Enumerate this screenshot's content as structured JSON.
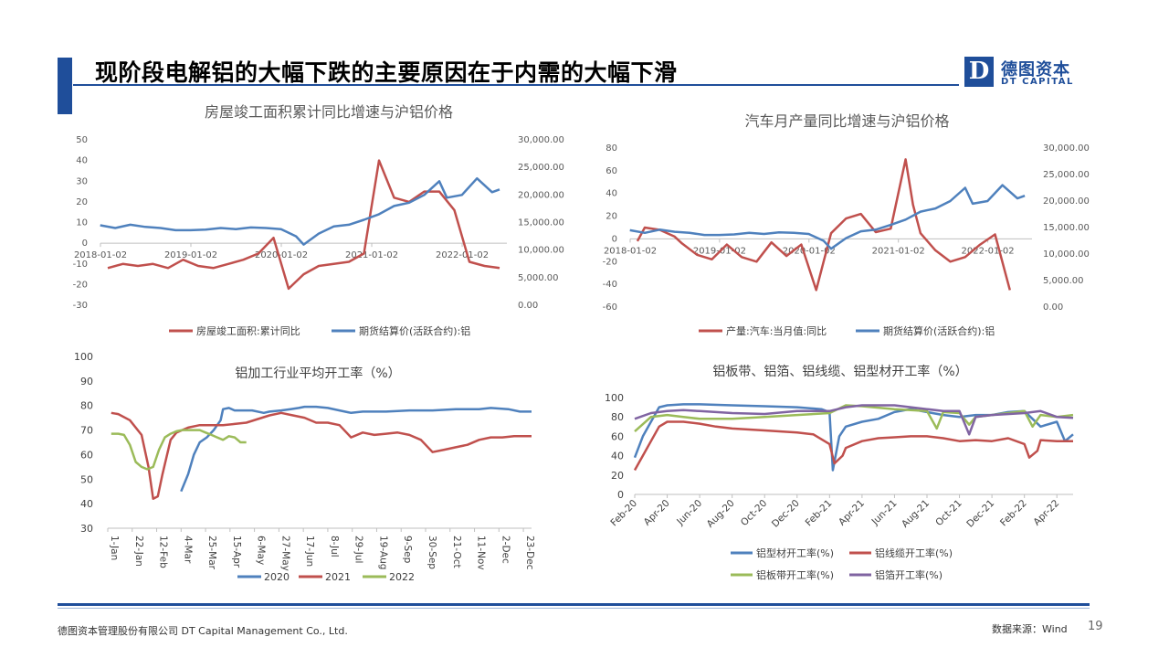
{
  "slide": {
    "title": "现阶段电解铝的大幅下跌的主要原因在于内需的大幅下滑",
    "logo_cn": "德图资本",
    "logo_en": "DT CAPITAL",
    "logo_mark": "D",
    "company": "德图资本管理股份有限公司 DT Capital Management Co., Ltd.",
    "source": "数据来源：Wind",
    "page": "19",
    "brand_color": "#1f4e9a"
  },
  "chart_data": [
    {
      "type": "line",
      "title": "房屋竣工面积累计同比增速与沪铝价格",
      "x_tick_labels": [
        "2018-01-02",
        "2019-01-02",
        "2020-01-02",
        "2021-01-02",
        "2022-01-02"
      ],
      "x_range": [
        "2018-01-02",
        "2022-06-30"
      ],
      "y_left": {
        "min": -30,
        "max": 50,
        "ticks": [
          "50",
          "40",
          "30",
          "20",
          "10",
          "0",
          "-10",
          "-20",
          "-30"
        ]
      },
      "y_right": {
        "min": 0,
        "max": 30000,
        "ticks": [
          "30,000.00",
          "25,000.00",
          "20,000.00",
          "15,000.00",
          "10,000.00",
          "5,000.00",
          "0.00"
        ]
      },
      "legend_position": "bottom",
      "series": [
        {
          "name": "房屋竣工面积:累计同比",
          "axis": "left",
          "color": "#c0504d",
          "x": [
            "2018-02",
            "2018-04",
            "2018-06",
            "2018-08",
            "2018-10",
            "2018-12",
            "2019-02",
            "2019-04",
            "2019-06",
            "2019-08",
            "2019-10",
            "2019-12",
            "2020-02",
            "2020-04",
            "2020-06",
            "2020-08",
            "2020-10",
            "2020-12",
            "2021-02",
            "2021-04",
            "2021-06",
            "2021-08",
            "2021-10",
            "2021-12",
            "2022-02",
            "2022-04",
            "2022-06"
          ],
          "y": [
            -12,
            -10,
            -11,
            -10,
            -12,
            -8,
            -11,
            -12,
            -10,
            -8,
            -5,
            2.6,
            -22,
            -15,
            -11,
            -10,
            -9,
            -5,
            40,
            22,
            20,
            25,
            25,
            16,
            -9,
            -11,
            -12
          ]
        },
        {
          "name": "期货结算价(活跃合约):铝",
          "axis": "right",
          "color": "#4f81bd",
          "x": [
            "2018-01",
            "2018-03",
            "2018-05",
            "2018-07",
            "2018-09",
            "2018-11",
            "2019-01",
            "2019-03",
            "2019-05",
            "2019-07",
            "2019-09",
            "2019-11",
            "2020-01",
            "2020-03",
            "2020-04",
            "2020-06",
            "2020-08",
            "2020-10",
            "2020-12",
            "2021-02",
            "2021-04",
            "2021-06",
            "2021-08",
            "2021-10",
            "2021-11",
            "2022-01",
            "2022-03",
            "2022-05",
            "2022-06"
          ],
          "y": [
            14500,
            14000,
            14600,
            14200,
            14000,
            13600,
            13600,
            13700,
            14000,
            13800,
            14100,
            14000,
            13800,
            12500,
            11000,
            13000,
            14300,
            14600,
            15500,
            16500,
            18000,
            18600,
            20000,
            22500,
            19500,
            20000,
            23000,
            20500,
            21000
          ]
        }
      ]
    },
    {
      "type": "line",
      "title": "汽车月产量同比增速与沪铝价格",
      "x_tick_labels": [
        "2018-01-02",
        "2019-01-02",
        "2020-01-02",
        "2021-01-02",
        "2022-01-02"
      ],
      "x_range": [
        "2018-01-02",
        "2022-06-30"
      ],
      "y_left": {
        "min": -60,
        "max": 80,
        "ticks": [
          "80",
          "60",
          "40",
          "20",
          "0",
          "-20",
          "-40",
          "-60"
        ]
      },
      "y_right": {
        "min": 0,
        "max": 30000,
        "ticks": [
          "30,000.00",
          "25,000.00",
          "20,000.00",
          "15,000.00",
          "10,000.00",
          "5,000.00",
          "0.00"
        ]
      },
      "legend_position": "bottom",
      "series": [
        {
          "name": "产量:汽车:当月值:同比",
          "axis": "left",
          "color": "#c0504d",
          "x": [
            "2018-02",
            "2018-03",
            "2018-05",
            "2018-07",
            "2018-08",
            "2018-10",
            "2018-12",
            "2019-02",
            "2019-04",
            "2019-06",
            "2019-08",
            "2019-10",
            "2019-12",
            "2020-02",
            "2020-03",
            "2020-04",
            "2020-06",
            "2020-08",
            "2020-10",
            "2020-12",
            "2021-02",
            "2021-03",
            "2021-04",
            "2021-06",
            "2021-08",
            "2021-10",
            "2021-12",
            "2022-02",
            "2022-04"
          ],
          "y": [
            -2,
            10,
            8,
            2,
            -4,
            -14,
            -18,
            -5,
            -16,
            -20,
            -3,
            -15,
            -5,
            -45,
            -20,
            5,
            18,
            22,
            6,
            9,
            70,
            30,
            5,
            -10,
            -20,
            -16,
            -5,
            4,
            -45
          ]
        },
        {
          "name": "期货结算价(活跃合约):铝",
          "axis": "right",
          "color": "#4f81bd",
          "x": [
            "2018-01",
            "2018-03",
            "2018-05",
            "2018-07",
            "2018-09",
            "2018-11",
            "2019-01",
            "2019-03",
            "2019-05",
            "2019-07",
            "2019-09",
            "2019-11",
            "2020-01",
            "2020-03",
            "2020-04",
            "2020-06",
            "2020-08",
            "2020-10",
            "2020-12",
            "2021-02",
            "2021-04",
            "2021-06",
            "2021-08",
            "2021-10",
            "2021-11",
            "2022-01",
            "2022-03",
            "2022-05",
            "2022-06"
          ],
          "y": [
            14500,
            14000,
            14600,
            14200,
            14000,
            13600,
            13600,
            13700,
            14000,
            13800,
            14100,
            14000,
            13800,
            12500,
            11000,
            13000,
            14300,
            14600,
            15500,
            16500,
            18000,
            18600,
            20000,
            22500,
            19500,
            20000,
            23000,
            20500,
            21000
          ]
        }
      ]
    },
    {
      "type": "line",
      "title": "铝加工行业平均开工率（%）",
      "x_tick_labels": [
        "1-Jan",
        "22-Jan",
        "12-Feb",
        "4-Mar",
        "25-Mar",
        "15-Apr",
        "6-May",
        "27-May",
        "17-Jun",
        "8-Jul",
        "29-Jul",
        "19-Aug",
        "9-Sep",
        "30-Sep",
        "21-Oct",
        "11-Nov",
        "2-Dec",
        "23-Dec"
      ],
      "x_range_day": [
        1,
        365
      ],
      "y_range": [
        30,
        100
      ],
      "y_ticks": [
        "100",
        "90",
        "80",
        "70",
        "60",
        "50",
        "40",
        "30"
      ],
      "legend_position": "bottom",
      "series": [
        {
          "name": "2020",
          "color": "#4f81bd",
          "x": [
            64,
            70,
            75,
            80,
            86,
            92,
            98,
            100,
            105,
            110,
            125,
            135,
            140,
            150,
            158,
            165,
            170,
            180,
            190,
            200,
            210,
            220,
            240,
            260,
            280,
            300,
            320,
            330,
            345,
            355,
            365
          ],
          "y": [
            45,
            52,
            60,
            65,
            67,
            70,
            74,
            78.5,
            79,
            78,
            78,
            77,
            77.5,
            78,
            78.5,
            79,
            79.5,
            79.5,
            79,
            78,
            77,
            77.5,
            77.5,
            78,
            78,
            78.5,
            78.5,
            79,
            78.5,
            77.5,
            77.5
          ]
        },
        {
          "name": "2021",
          "color": "#c0504d",
          "x": [
            4,
            10,
            20,
            30,
            36,
            40,
            44,
            48,
            55,
            60,
            70,
            80,
            90,
            100,
            110,
            120,
            130,
            140,
            150,
            160,
            170,
            180,
            185,
            190,
            200,
            210,
            220,
            230,
            240,
            250,
            260,
            270,
            280,
            290,
            300,
            310,
            320,
            330,
            340,
            350,
            365
          ],
          "y": [
            77,
            76.5,
            74,
            68,
            55,
            42,
            43,
            52,
            66,
            69,
            71,
            72,
            72,
            72,
            72.5,
            73,
            74.5,
            76,
            77,
            76,
            75,
            73,
            73,
            73,
            72,
            67,
            69,
            68,
            68.5,
            69,
            68,
            66,
            61,
            62,
            63,
            64,
            66,
            67,
            67,
            67.5,
            67.5
          ]
        },
        {
          "name": "2022",
          "color": "#9bbb59",
          "x": [
            4,
            10,
            15,
            20,
            25,
            30,
            35,
            40,
            45,
            50,
            55,
            60,
            65,
            70,
            75,
            80,
            85,
            90,
            95,
            100,
            105,
            110,
            115,
            120
          ],
          "y": [
            68.5,
            68.5,
            68,
            64,
            57,
            55,
            54,
            55,
            62,
            67,
            68.5,
            69.5,
            70,
            70,
            70,
            70,
            69,
            68,
            67,
            66,
            67.5,
            67,
            65,
            65
          ]
        }
      ]
    },
    {
      "type": "line",
      "title": "铝板带、铝箔、铝线缆、铝型材开工率（%）",
      "x_tick_labels": [
        "Feb-20",
        "Apr-20",
        "Jun-20",
        "Aug-20",
        "Oct-20",
        "Dec-20",
        "Feb-21",
        "Apr-21",
        "Jun-21",
        "Aug-21",
        "Oct-21",
        "Dec-21",
        "Feb-22",
        "Apr-22"
      ],
      "x_range_month": [
        0,
        27
      ],
      "y_range": [
        0,
        100
      ],
      "y_ticks": [
        "100",
        "80",
        "60",
        "40",
        "20",
        "0"
      ],
      "legend_position": "bottom",
      "series": [
        {
          "name": "铝型材开工率(%)",
          "color": "#4f81bd",
          "x": [
            0,
            0.5,
            1,
            1.5,
            2,
            3,
            4,
            6,
            8,
            10,
            11.5,
            12,
            12.2,
            12.6,
            13,
            14,
            15,
            16,
            17,
            18,
            19,
            20,
            21,
            22,
            23,
            24,
            25,
            26,
            26.5,
            27
          ],
          "y": [
            38,
            60,
            75,
            90,
            92,
            93,
            93,
            92,
            91,
            90,
            88,
            85,
            25,
            60,
            70,
            75,
            78,
            85,
            88,
            85,
            82,
            80,
            82,
            82,
            85,
            86,
            70,
            75,
            55,
            62
          ]
        },
        {
          "name": "铝线缆开工率(%)",
          "color": "#c0504d",
          "x": [
            0,
            0.5,
            1,
            1.5,
            2,
            3,
            4,
            5,
            6,
            8,
            10,
            11,
            12,
            12.3,
            12.8,
            13,
            14,
            15,
            16,
            17,
            18,
            19,
            20,
            21,
            22,
            23,
            24,
            24.3,
            24.8,
            25,
            26,
            27
          ],
          "y": [
            25,
            40,
            55,
            70,
            75,
            75,
            73,
            70,
            68,
            66,
            64,
            62,
            52,
            32,
            40,
            48,
            55,
            58,
            59,
            60,
            60,
            58,
            55,
            56,
            55,
            58,
            52,
            38,
            45,
            56,
            55,
            55
          ]
        },
        {
          "name": "铝板带开工率(%)",
          "color": "#9bbb59",
          "x": [
            0,
            1,
            2,
            3,
            4,
            6,
            8,
            10,
            12,
            13,
            14,
            16,
            18,
            18.6,
            19,
            20,
            20.6,
            21,
            22,
            23,
            24,
            24.5,
            25,
            26,
            27
          ],
          "y": [
            65,
            80,
            82,
            80,
            78,
            78,
            80,
            82,
            84,
            92,
            91,
            88,
            86,
            68,
            85,
            84,
            72,
            80,
            82,
            84,
            86,
            70,
            82,
            80,
            82
          ]
        },
        {
          "name": "铝箔开工率(%)",
          "color": "#8064a2",
          "x": [
            0,
            1,
            2,
            3,
            4,
            6,
            8,
            10,
            12,
            13,
            14,
            16,
            18,
            19,
            20,
            20.6,
            21,
            22,
            24,
            25,
            26,
            27
          ],
          "y": [
            78,
            84,
            86,
            87,
            86,
            84,
            83,
            86,
            86,
            90,
            92,
            92,
            88,
            86,
            86,
            62,
            80,
            82,
            84,
            86,
            80,
            79
          ]
        }
      ]
    }
  ]
}
